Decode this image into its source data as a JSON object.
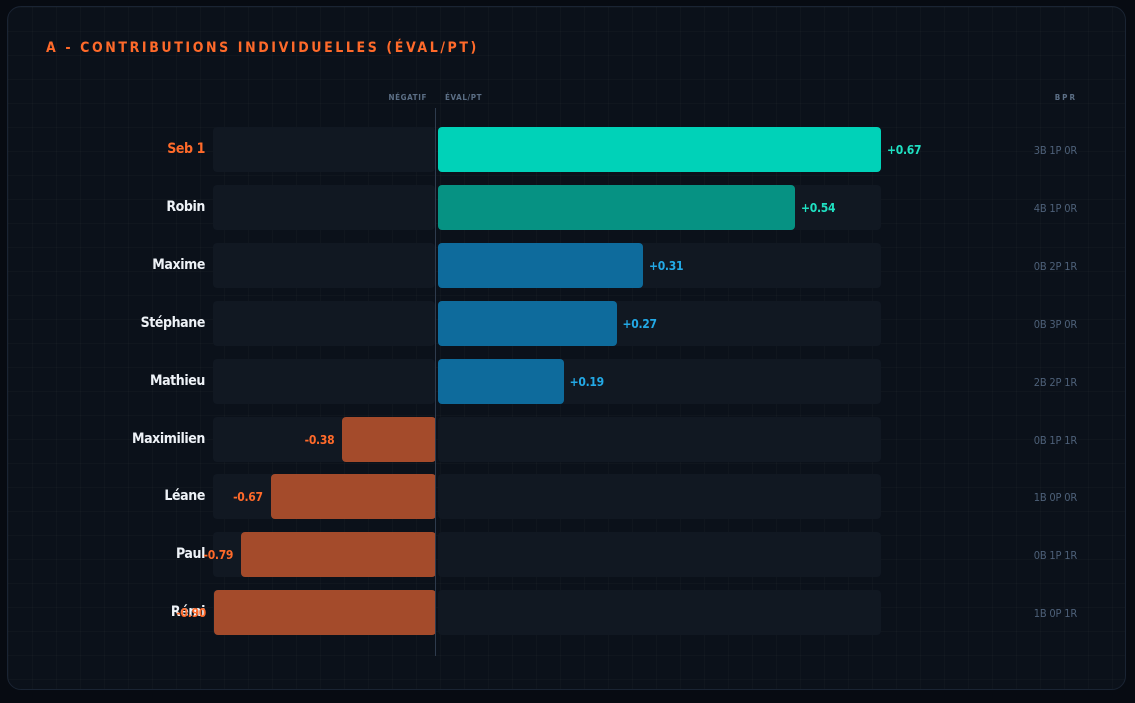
{
  "title": "A - CONTRIBUTIONS INDIVIDUELLES (ÉVAL/PT)",
  "colors": {
    "highlight": "#ff6a2a",
    "top_bar": "#00d2b8",
    "second_bar": "#069283",
    "positive_bar": "#0e6b9c",
    "positive_label": "#23a9e6",
    "teal_label": "#1fe0c2",
    "negative_bar": "#a44b2b",
    "negative_label": "#ff6a2a"
  },
  "chart_data": {
    "type": "bar",
    "orientation": "horizontal",
    "title": "A - CONTRIBUTIONS INDIVIDUELLES (ÉVAL/PT)",
    "column_headers": {
      "negative": "NÉGATIF",
      "positive": "ÉVAL/PT",
      "bpr": "BPR"
    },
    "categories": [
      "Seb 1",
      "Robin",
      "Maxime",
      "Stéphane",
      "Mathieu",
      "Maximilien",
      "Léane",
      "Paul",
      "Rémi"
    ],
    "values": [
      0.67,
      0.54,
      0.31,
      0.27,
      0.19,
      -0.38,
      -0.67,
      -0.79,
      -0.9
    ],
    "value_labels": [
      "+0.67",
      "+0.54",
      "+0.31",
      "+0.27",
      "+0.19",
      "-0.38",
      "-0.67",
      "-0.79",
      "-0.90"
    ],
    "bpr": [
      "3B 1P 0R",
      "4B 1P 0R",
      "0B 2P 1R",
      "0B 3P 0R",
      "2B 2P 1R",
      "0B 1P 1R",
      "1B 0P 0R",
      "0B 1P 1R",
      "1B 0P 1R"
    ],
    "highlighted": "Seb 1",
    "xlim": [
      -0.9,
      0.67
    ]
  }
}
